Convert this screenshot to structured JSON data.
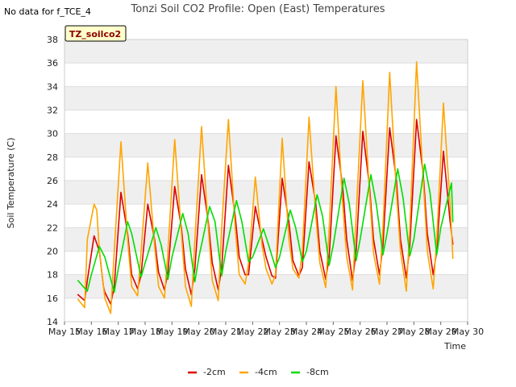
{
  "no_data_note": "No data for f_TCE_4",
  "chart_data": {
    "type": "line",
    "title": "Tonzi Soil CO2 Profile: Open (East) Temperatures",
    "xlabel": "Time",
    "ylabel": "Soil Temperature (C)",
    "badge": "TZ_soilco2",
    "x_range_days": [
      0,
      15
    ],
    "x_tick_days": [
      0,
      1,
      2,
      3,
      4,
      5,
      6,
      7,
      8,
      9,
      10,
      11,
      12,
      13,
      14,
      15
    ],
    "x_tick_labels": [
      "May 15",
      "May 16",
      "May 17",
      "May 18",
      "May 19",
      "May 20",
      "May 21",
      "May 22",
      "May 23",
      "May 24",
      "May 25",
      "May 26",
      "May 27",
      "May 28",
      "May 29",
      "May 30"
    ],
    "ylim": [
      14,
      38
    ],
    "y_ticks": [
      14,
      16,
      18,
      20,
      22,
      24,
      26,
      28,
      30,
      32,
      34,
      36,
      38
    ],
    "legend_position": "bottom",
    "series": [
      {
        "name": "-2cm",
        "color": "#dd0000",
        "x": [
          0.5,
          0.75,
          0.85,
          1.1,
          1.3,
          1.45,
          1.5,
          1.72,
          1.85,
          2.1,
          2.35,
          2.5,
          2.72,
          2.85,
          3.1,
          3.35,
          3.5,
          3.72,
          3.85,
          4.1,
          4.35,
          4.5,
          4.72,
          4.85,
          5.1,
          5.35,
          5.5,
          5.72,
          5.85,
          6.1,
          6.35,
          6.5,
          6.72,
          6.85,
          7.1,
          7.35,
          7.5,
          7.72,
          7.85,
          8.1,
          8.35,
          8.5,
          8.72,
          8.85,
          9.1,
          9.35,
          9.5,
          9.72,
          9.85,
          10.1,
          10.35,
          10.5,
          10.72,
          10.85,
          11.1,
          11.35,
          11.5,
          11.72,
          11.85,
          12.1,
          12.35,
          12.5,
          12.72,
          12.85,
          13.1,
          13.35,
          13.5,
          13.72,
          13.85,
          14.1,
          14.35,
          14.45
        ],
        "y": [
          16.3,
          15.8,
          17.5,
          21.3,
          20.0,
          17.0,
          16.5,
          15.5,
          17.0,
          25.0,
          21.5,
          18.0,
          16.8,
          18.0,
          24.0,
          21.0,
          18.2,
          16.7,
          18.2,
          25.5,
          22.0,
          18.5,
          16.3,
          18.5,
          26.5,
          22.5,
          19.0,
          16.7,
          18.6,
          27.3,
          23.0,
          19.5,
          18.0,
          18.0,
          23.8,
          21.0,
          19.5,
          17.9,
          17.7,
          26.2,
          22.5,
          19.2,
          17.9,
          18.6,
          27.6,
          24.0,
          20.0,
          17.6,
          19.5,
          29.8,
          25.5,
          21.0,
          17.5,
          20.0,
          30.2,
          25.5,
          21.0,
          18.0,
          20.5,
          30.5,
          26.0,
          21.0,
          17.7,
          20.5,
          31.2,
          26.5,
          21.5,
          18.0,
          20.0,
          28.5,
          22.5,
          20.6
        ]
      },
      {
        "name": "-4cm",
        "color": "#ffa500",
        "x": [
          0.5,
          0.75,
          0.85,
          1.1,
          1.2,
          1.3,
          1.5,
          1.72,
          1.85,
          2.1,
          2.35,
          2.5,
          2.72,
          2.85,
          3.1,
          3.35,
          3.5,
          3.72,
          3.85,
          4.1,
          4.35,
          4.5,
          4.72,
          4.85,
          5.1,
          5.35,
          5.5,
          5.72,
          5.85,
          6.1,
          6.35,
          6.5,
          6.72,
          6.85,
          7.1,
          7.35,
          7.5,
          7.72,
          7.85,
          8.1,
          8.35,
          8.5,
          8.72,
          8.85,
          9.1,
          9.35,
          9.5,
          9.72,
          9.85,
          10.1,
          10.35,
          10.5,
          10.72,
          10.85,
          11.1,
          11.35,
          11.5,
          11.72,
          11.85,
          12.1,
          12.35,
          12.5,
          12.72,
          12.85,
          13.1,
          13.35,
          13.5,
          13.72,
          13.85,
          14.1,
          14.15,
          14.35,
          14.45
        ],
        "y": [
          15.9,
          15.2,
          21.0,
          24.0,
          23.5,
          20.0,
          16.0,
          14.7,
          20.0,
          29.3,
          21.0,
          17.0,
          16.2,
          20.0,
          27.5,
          20.5,
          17.0,
          16.0,
          20.0,
          29.5,
          21.5,
          17.0,
          15.3,
          21.0,
          30.6,
          22.0,
          17.5,
          15.8,
          22.0,
          31.2,
          22.0,
          18.0,
          17.2,
          19.0,
          26.3,
          20.5,
          18.5,
          17.2,
          18.0,
          29.6,
          21.0,
          18.5,
          17.7,
          20.0,
          31.4,
          23.0,
          19.0,
          16.9,
          22.0,
          34.0,
          24.0,
          19.5,
          16.7,
          23.0,
          34.5,
          25.0,
          19.8,
          17.2,
          22.0,
          35.2,
          25.0,
          20.0,
          16.6,
          22.0,
          36.1,
          26.0,
          20.0,
          16.8,
          21.0,
          32.6,
          30.8,
          24.0,
          19.4
        ]
      },
      {
        "name": "-8cm",
        "color": "#00dd00",
        "x": [
          0.5,
          0.85,
          1.0,
          1.3,
          1.5,
          1.85,
          2.0,
          2.35,
          2.5,
          2.85,
          3.0,
          3.4,
          3.6,
          3.85,
          4.0,
          4.4,
          4.6,
          4.85,
          5.0,
          5.4,
          5.6,
          5.85,
          6.0,
          6.4,
          6.6,
          6.85,
          7.0,
          7.4,
          7.6,
          7.85,
          8.0,
          8.4,
          8.6,
          8.85,
          9.0,
          9.4,
          9.6,
          9.85,
          10.0,
          10.4,
          10.6,
          10.85,
          11.0,
          11.4,
          11.6,
          11.85,
          12.0,
          12.4,
          12.6,
          12.85,
          13.0,
          13.4,
          13.6,
          13.85,
          14.0,
          14.4,
          14.45
        ],
        "y": [
          17.5,
          16.6,
          18.0,
          20.4,
          19.5,
          16.5,
          18.5,
          22.5,
          21.5,
          17.8,
          19.0,
          22.0,
          20.5,
          17.6,
          19.5,
          23.2,
          21.5,
          17.4,
          19.5,
          23.8,
          22.5,
          17.9,
          20.0,
          24.3,
          22.5,
          19.1,
          19.5,
          21.9,
          20.5,
          18.6,
          19.5,
          23.5,
          22.0,
          19.1,
          20.0,
          24.8,
          23.0,
          18.8,
          20.5,
          26.2,
          24.0,
          19.2,
          21.0,
          26.5,
          24.0,
          19.7,
          21.5,
          27.0,
          24.5,
          19.6,
          21.0,
          27.4,
          25.0,
          19.7,
          22.0,
          25.8,
          22.5
        ]
      }
    ]
  }
}
